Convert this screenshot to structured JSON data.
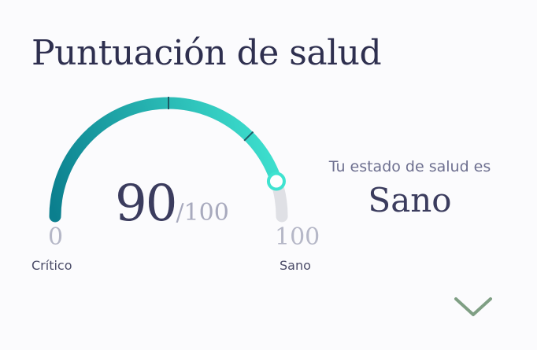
{
  "card": {
    "title": "Puntuación de salud"
  },
  "gauge": {
    "score": "90",
    "max_text": "/100",
    "value": 90,
    "min": 0,
    "max": 100,
    "min_text": "0",
    "max_tick_text": "100",
    "min_label": "Crítico",
    "max_label": "Sano",
    "colors": {
      "gradient_start": "#0b7f8e",
      "gradient_end": "#3fe3d0",
      "track": "#dfe0e5",
      "tick": "#1d5b66"
    }
  },
  "status": {
    "label": "Tu estado de salud es",
    "value": "Sano"
  },
  "expand": {
    "icon": "chevron-down-icon",
    "color": "#7f9f84"
  }
}
